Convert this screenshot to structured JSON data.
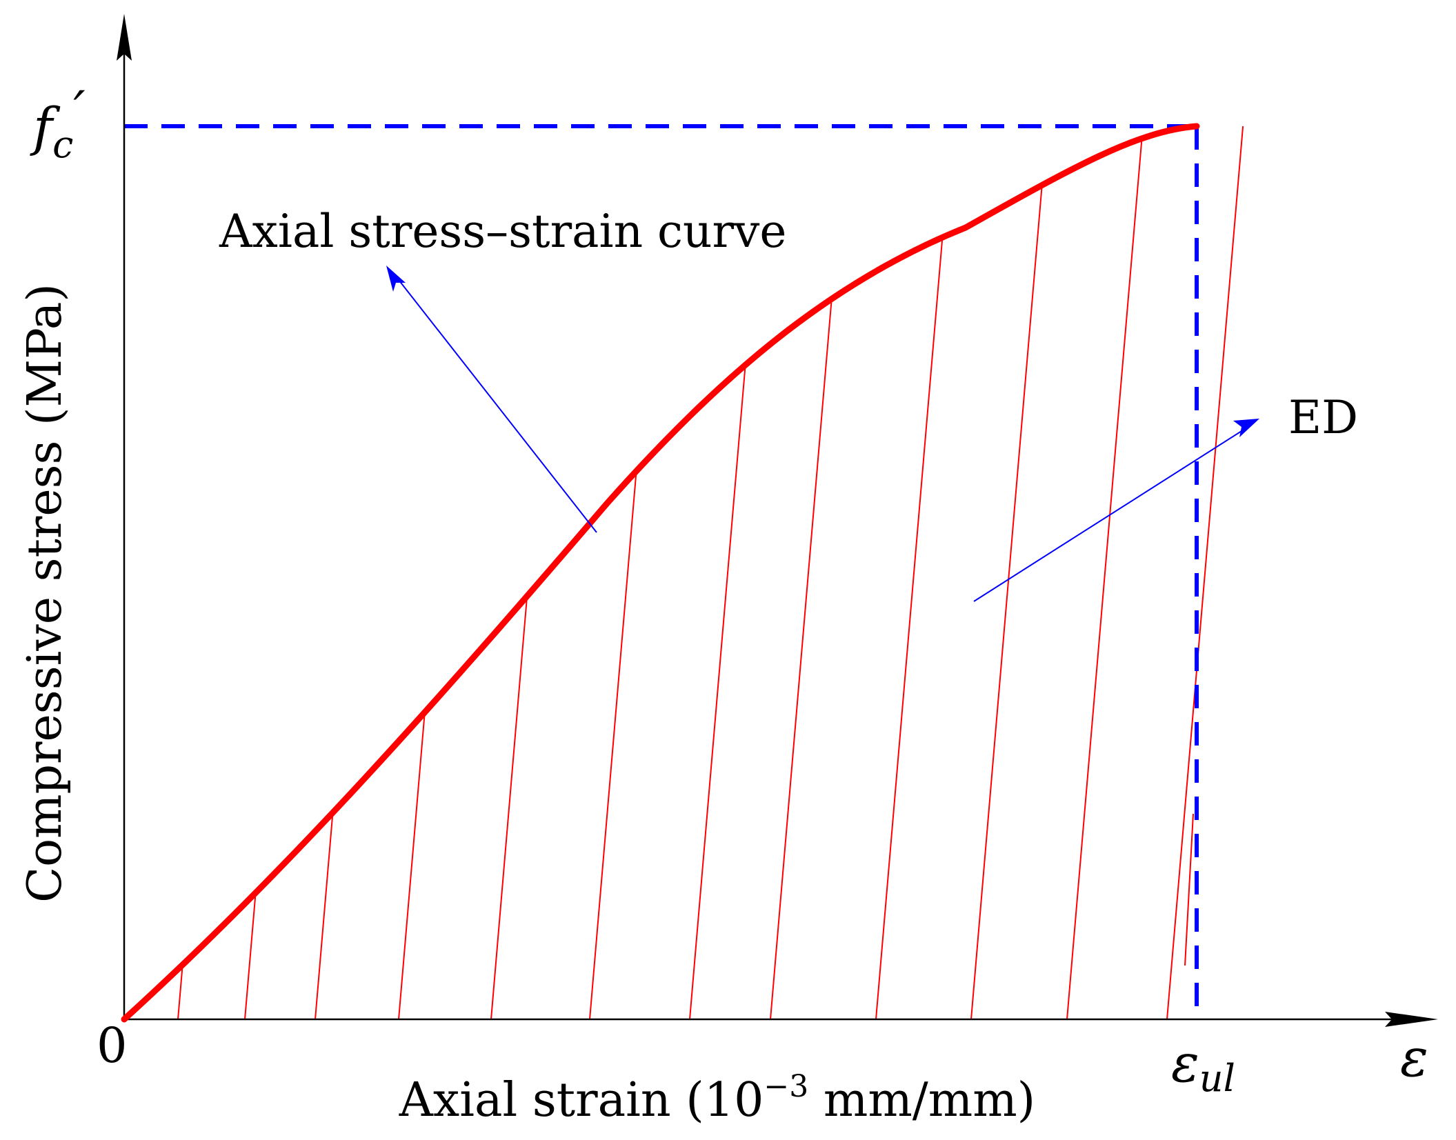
{
  "labels": {
    "y_axis_title": "Compressive stress (MPa)",
    "x_axis_title_prefix": "Axial strain (10",
    "x_axis_title_exponent": "−3",
    "x_axis_title_suffix": " mm/mm)",
    "origin": "0",
    "peak_stress_base": "f",
    "peak_stress_sub": "c",
    "peak_stress_prime": "′",
    "ultimate_strain_base": "ε",
    "ultimate_strain_sub": "ul",
    "x_axis_symbol": "ε",
    "curve_annotation": "Axial stress–strain curve",
    "area_annotation": "ED"
  },
  "colors": {
    "curve": "#ff0000",
    "hatch": "#ff0000",
    "dashed_guides": "#0000ff",
    "leader_lines": "#0000ff",
    "axes": "#000000",
    "text": "#000000"
  },
  "icons": {
    "y_axis_arrow": "arrowhead-up-icon",
    "x_axis_arrow": "arrowhead-right-icon",
    "curve_leader_arrow": "arrowhead-icon",
    "area_leader_arrow": "arrowhead-icon"
  }
}
